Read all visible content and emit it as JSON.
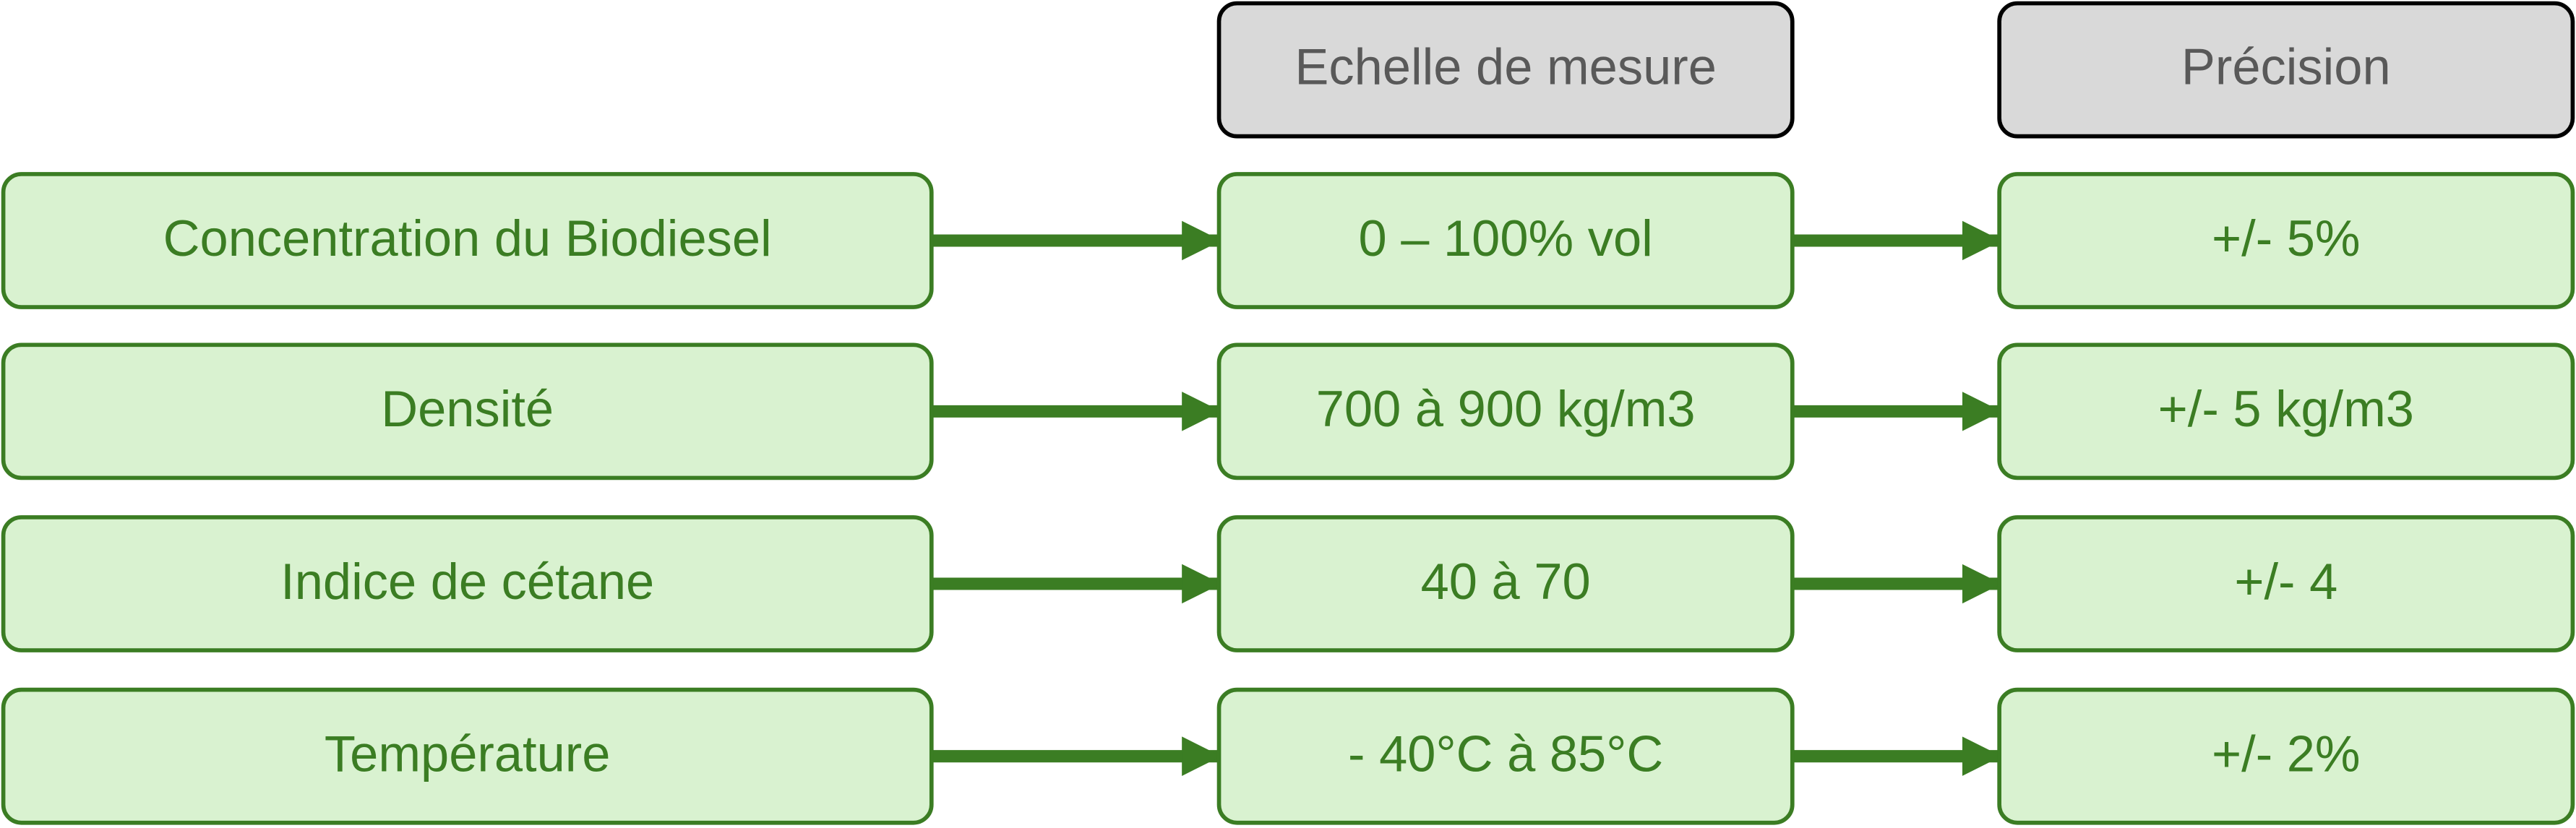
{
  "headers": [
    "Echelle de mesure",
    "Précision"
  ],
  "rows": [
    [
      "Concentration du Biodiesel",
      "0 – 100% vol",
      "+/- 5%"
    ],
    [
      "Densité",
      "700 à 900 kg/m3",
      "+/- 5 kg/m3"
    ],
    [
      "Indice de cétane",
      "40 à 70",
      "+/- 4"
    ],
    [
      "Température",
      "- 40°C à 85°C",
      "+/- 2%"
    ]
  ]
}
